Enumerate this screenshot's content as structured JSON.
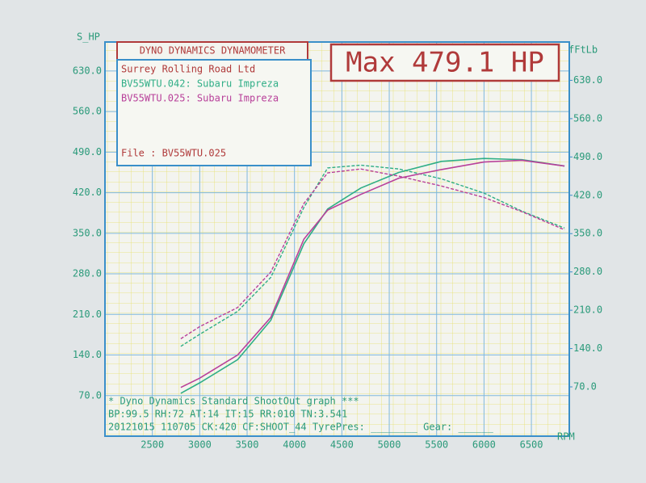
{
  "chart_data": {
    "type": "line",
    "header": "DYNO DYNAMICS DYNAMOMETER",
    "max_label": "Max 479.1 HP",
    "company": "Surrey Rolling Road Ltd",
    "file_label": "File     : BV55WTU.025",
    "ylabel": "S_HP",
    "y2label": "fFtLb",
    "xlabel": "RPM",
    "footer": [
      "* Dyno Dynamics Standard ShootOut graph ***",
      "BP:99.5   RH:72 AT:14 IT:15   RR:010 TN:3.541",
      "20121015 110705 CK:420 CF:SHOOT_44 TyrePres: ________ Gear: ______"
    ],
    "x": [
      2800,
      3000,
      3400,
      3750,
      4100,
      4350,
      4700,
      5100,
      5550,
      6000,
      6400,
      6850
    ],
    "runs": [
      {
        "label": "BV55WTU.042: Subaru Impreza",
        "color": "#2fae86",
        "hp": [
          74,
          92,
          132,
          200,
          332,
          392,
          428,
          455,
          474,
          479,
          477,
          466
        ],
        "ftlb": [
          144,
          166,
          208,
          270,
          398,
          470,
          475,
          468,
          450,
          424,
          391,
          360
        ]
      },
      {
        "label": "BV55WTU.025: Subaru Impreza",
        "color": "#b8409a",
        "hp": [
          84,
          100,
          140,
          205,
          340,
          390,
          417,
          445,
          460,
          473,
          476,
          466
        ],
        "ftlb": [
          158,
          180,
          215,
          280,
          405,
          461,
          468,
          455,
          437,
          416,
          390,
          357
        ]
      }
    ],
    "xlim": [
      2000,
      6900
    ],
    "xticks": [
      2500,
      3000,
      3500,
      4000,
      4500,
      5000,
      5500,
      6000,
      6500
    ],
    "ylim": [
      0,
      680
    ],
    "yticks": [
      {
        "value": 70,
        "label": "70.0"
      },
      {
        "value": 140,
        "label": "140.0"
      },
      {
        "value": 210,
        "label": "210.0"
      },
      {
        "value": 280,
        "label": "280.0"
      },
      {
        "value": 350,
        "label": "350.0"
      },
      {
        "value": 420,
        "label": "420.0"
      },
      {
        "value": 490,
        "label": "490.0"
      },
      {
        "value": 560,
        "label": "560.0"
      },
      {
        "value": 630,
        "label": "630.0"
      }
    ],
    "y2lim": [
      -20,
      700
    ],
    "y2ticks": [
      {
        "value": 70,
        "label": "70.0"
      },
      {
        "value": 140,
        "label": "140.0"
      },
      {
        "value": 210,
        "label": "210.0"
      },
      {
        "value": 280,
        "label": "280.0"
      },
      {
        "value": 350,
        "label": "350.0"
      },
      {
        "value": 420,
        "label": "420.0"
      },
      {
        "value": 490,
        "label": "490.0"
      },
      {
        "value": 560,
        "label": "560.0"
      },
      {
        "value": 630,
        "label": "630.0"
      }
    ],
    "grid": true
  }
}
